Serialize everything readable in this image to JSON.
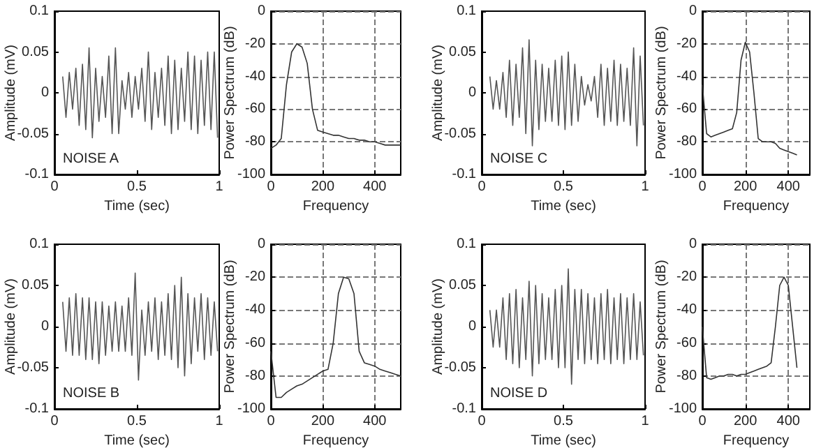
{
  "chart_data": [
    {
      "type": "line",
      "xlabel": "Time (sec)",
      "ylabel": "Amplitude (mV)",
      "annotations": [
        "NOISE A"
      ],
      "xlim": [
        0,
        1
      ],
      "xticks": [
        0,
        0.5,
        1
      ],
      "ylim": [
        -0.1,
        0.1
      ],
      "yticks": [
        -0.1,
        -0.05,
        0,
        0.05,
        0.1
      ],
      "grid": false,
      "marker": "none",
      "x": [
        0.05,
        0.07,
        0.09,
        0.11,
        0.13,
        0.15,
        0.17,
        0.19,
        0.21,
        0.23,
        0.25,
        0.27,
        0.29,
        0.31,
        0.33,
        0.35,
        0.37,
        0.39,
        0.41,
        0.43,
        0.45,
        0.47,
        0.49,
        0.51,
        0.53,
        0.55,
        0.57,
        0.59,
        0.61,
        0.63,
        0.65,
        0.67,
        0.69,
        0.71,
        0.73,
        0.75,
        0.77,
        0.79,
        0.81,
        0.83,
        0.85,
        0.87,
        0.89,
        0.91,
        0.93,
        0.95,
        0.97,
        0.99
      ],
      "series": [
        {
          "color": "#555555",
          "values": [
            0.02,
            -0.03,
            0.025,
            -0.02,
            0.03,
            -0.04,
            0.035,
            -0.045,
            0.055,
            -0.055,
            0.03,
            -0.035,
            0.02,
            -0.03,
            0.045,
            -0.05,
            0.055,
            -0.05,
            0.015,
            -0.02,
            0.025,
            -0.03,
            0.02,
            -0.02,
            0.03,
            -0.035,
            0.05,
            -0.045,
            0.025,
            -0.03,
            0.03,
            -0.04,
            0.045,
            -0.05,
            0.04,
            -0.045,
            0.03,
            -0.035,
            0.05,
            -0.045,
            0.045,
            -0.05,
            0.04,
            -0.04,
            0.05,
            -0.045,
            0.05,
            -0.055
          ]
        }
      ]
    },
    {
      "type": "line",
      "xlabel": "Frequency",
      "ylabel": "Power Spectrum (dB)",
      "xlim": [
        0,
        500
      ],
      "xticks": [
        0,
        200,
        400
      ],
      "ylim": [
        -100,
        0
      ],
      "yticks": [
        -100,
        -80,
        -60,
        -40,
        -20,
        0
      ],
      "grid": true,
      "marker": "none",
      "x": [
        0,
        20,
        40,
        60,
        80,
        100,
        120,
        140,
        160,
        180,
        200,
        220,
        240,
        260,
        280,
        300,
        320,
        340,
        360,
        380,
        400,
        420,
        440,
        460,
        480,
        500
      ],
      "series": [
        {
          "color": "#333333",
          "values": [
            -84,
            -82,
            -78,
            -45,
            -25,
            -20,
            -22,
            -32,
            -60,
            -73,
            -74,
            -75,
            -76,
            -76,
            -77,
            -78,
            -78,
            -79,
            -79,
            -80,
            -80,
            -81,
            -82,
            -82,
            -82,
            -82
          ]
        }
      ]
    },
    {
      "type": "line",
      "xlabel": "Time (sec)",
      "ylabel": "Amplitude (mV)",
      "annotations": [
        "NOISE C"
      ],
      "xlim": [
        0,
        1
      ],
      "xticks": [
        0,
        0.5,
        1
      ],
      "ylim": [
        -0.1,
        0.1
      ],
      "yticks": [
        -0.1,
        -0.05,
        0,
        0.05,
        0.1
      ],
      "grid": false,
      "marker": "none",
      "x": [
        0.05,
        0.07,
        0.09,
        0.11,
        0.13,
        0.15,
        0.17,
        0.19,
        0.21,
        0.23,
        0.25,
        0.27,
        0.29,
        0.31,
        0.33,
        0.35,
        0.37,
        0.39,
        0.41,
        0.43,
        0.45,
        0.47,
        0.49,
        0.51,
        0.53,
        0.55,
        0.57,
        0.59,
        0.61,
        0.63,
        0.65,
        0.67,
        0.69,
        0.71,
        0.73,
        0.75,
        0.77,
        0.79,
        0.81,
        0.83,
        0.85,
        0.87,
        0.89,
        0.91,
        0.93,
        0.95,
        0.97,
        0.99
      ],
      "series": [
        {
          "color": "#555555",
          "values": [
            0.02,
            -0.02,
            0.015,
            -0.02,
            0.025,
            -0.03,
            0.04,
            -0.04,
            0.035,
            -0.03,
            0.055,
            -0.05,
            0.065,
            -0.065,
            0.04,
            -0.045,
            0.035,
            -0.035,
            0.03,
            -0.035,
            0.04,
            -0.04,
            0.045,
            -0.045,
            0.05,
            -0.04,
            0.035,
            -0.035,
            0.02,
            -0.015,
            0.01,
            -0.01,
            0.02,
            -0.03,
            0.035,
            -0.04,
            0.03,
            -0.035,
            0.04,
            -0.04,
            0.035,
            -0.035,
            0.03,
            -0.04,
            0.055,
            -0.065,
            0.045,
            -0.04
          ]
        }
      ]
    },
    {
      "type": "line",
      "xlabel": "Frequency",
      "ylabel": "Power Spectrum (dB)",
      "xlim": [
        0,
        500
      ],
      "xticks": [
        0,
        200,
        400
      ],
      "ylim": [
        -100,
        0
      ],
      "yticks": [
        -100,
        -80,
        -60,
        -40,
        -20,
        0
      ],
      "grid": true,
      "marker": "none",
      "x": [
        0,
        20,
        40,
        60,
        80,
        100,
        120,
        140,
        160,
        180,
        200,
        220,
        240,
        260,
        280,
        300,
        320,
        340,
        360,
        380,
        400,
        420,
        440
      ],
      "series": [
        {
          "color": "#333333",
          "values": [
            -45,
            -75,
            -77,
            -76,
            -75,
            -74,
            -73,
            -72,
            -62,
            -30,
            -19,
            -25,
            -50,
            -78,
            -80,
            -80,
            -80,
            -81,
            -84,
            -85,
            -86,
            -87,
            -88
          ]
        }
      ]
    },
    {
      "type": "line",
      "xlabel": "Time (sec)",
      "ylabel": "Amplitude (mV)",
      "annotations": [
        "NOISE B"
      ],
      "xlim": [
        0,
        1
      ],
      "xticks": [
        0,
        0.5,
        1
      ],
      "ylim": [
        -0.1,
        0.1
      ],
      "yticks": [
        -0.1,
        -0.05,
        0,
        0.05,
        0.1
      ],
      "grid": false,
      "marker": "none",
      "x": [
        0.05,
        0.07,
        0.09,
        0.11,
        0.13,
        0.15,
        0.17,
        0.19,
        0.21,
        0.23,
        0.25,
        0.27,
        0.29,
        0.31,
        0.33,
        0.35,
        0.37,
        0.39,
        0.41,
        0.43,
        0.45,
        0.47,
        0.49,
        0.51,
        0.53,
        0.55,
        0.57,
        0.59,
        0.61,
        0.63,
        0.65,
        0.67,
        0.69,
        0.71,
        0.73,
        0.75,
        0.77,
        0.79,
        0.81,
        0.83,
        0.85,
        0.87,
        0.89,
        0.91,
        0.93,
        0.95,
        0.97,
        0.99
      ],
      "series": [
        {
          "color": "#555555",
          "values": [
            0.03,
            -0.03,
            0.035,
            -0.035,
            0.04,
            -0.035,
            0.035,
            -0.04,
            0.035,
            -0.04,
            0.03,
            -0.045,
            0.03,
            -0.035,
            0.025,
            -0.03,
            0.03,
            -0.03,
            0.025,
            -0.03,
            0.035,
            -0.035,
            0.065,
            -0.065,
            0.02,
            -0.035,
            0.03,
            -0.03,
            0.035,
            -0.04,
            0.03,
            -0.035,
            0.04,
            -0.04,
            0.05,
            -0.05,
            0.06,
            -0.06,
            0.04,
            -0.045,
            0.035,
            -0.03,
            0.04,
            -0.04,
            0.035,
            -0.035,
            0.03,
            -0.03
          ]
        }
      ]
    },
    {
      "type": "line",
      "xlabel": "Frequency",
      "ylabel": "Power Spectrum (dB)",
      "xlim": [
        0,
        500
      ],
      "xticks": [
        0,
        200,
        400
      ],
      "ylim": [
        -100,
        0
      ],
      "yticks": [
        -100,
        -80,
        -60,
        -40,
        -20,
        0
      ],
      "grid": true,
      "marker": "none",
      "x": [
        0,
        20,
        40,
        60,
        80,
        100,
        120,
        140,
        160,
        180,
        200,
        220,
        240,
        260,
        280,
        300,
        320,
        340,
        360,
        380,
        400,
        420,
        440,
        460,
        480,
        500
      ],
      "series": [
        {
          "color": "#333333",
          "values": [
            -65,
            -93,
            -93,
            -90,
            -88,
            -86,
            -85,
            -83,
            -81,
            -79,
            -77,
            -76,
            -60,
            -30,
            -20,
            -21,
            -30,
            -65,
            -72,
            -73,
            -74,
            -76,
            -77,
            -78,
            -79,
            -80
          ]
        }
      ]
    },
    {
      "type": "line",
      "xlabel": "Time (sec)",
      "ylabel": "Amplitude (mV)",
      "annotations": [
        "NOISE D"
      ],
      "xlim": [
        0,
        1
      ],
      "xticks": [
        0,
        0.5,
        1
      ],
      "ylim": [
        -0.1,
        0.1
      ],
      "yticks": [
        -0.1,
        -0.05,
        0,
        0.05,
        0.1
      ],
      "grid": false,
      "marker": "none",
      "x": [
        0.05,
        0.07,
        0.09,
        0.11,
        0.13,
        0.15,
        0.17,
        0.19,
        0.21,
        0.23,
        0.25,
        0.27,
        0.29,
        0.31,
        0.33,
        0.35,
        0.37,
        0.39,
        0.41,
        0.43,
        0.45,
        0.47,
        0.49,
        0.51,
        0.53,
        0.55,
        0.57,
        0.59,
        0.61,
        0.63,
        0.65,
        0.67,
        0.69,
        0.71,
        0.73,
        0.75,
        0.77,
        0.79,
        0.81,
        0.83,
        0.85,
        0.87,
        0.89,
        0.91,
        0.93,
        0.95,
        0.97,
        0.99
      ],
      "series": [
        {
          "color": "#555555",
          "values": [
            0.02,
            -0.025,
            0.02,
            -0.025,
            0.035,
            -0.04,
            0.04,
            -0.045,
            0.045,
            -0.05,
            0.035,
            -0.04,
            0.055,
            -0.06,
            0.05,
            -0.045,
            0.04,
            -0.04,
            0.035,
            -0.04,
            0.045,
            -0.05,
            0.05,
            -0.05,
            0.07,
            -0.07,
            0.045,
            -0.04,
            0.045,
            -0.045,
            0.04,
            -0.04,
            0.035,
            -0.045,
            0.04,
            -0.04,
            0.045,
            -0.045,
            0.035,
            -0.04,
            0.04,
            -0.045,
            0.035,
            -0.04,
            0.04,
            -0.04,
            0.03,
            -0.035
          ]
        }
      ]
    },
    {
      "type": "line",
      "xlabel": "Frequency",
      "ylabel": "Power Spectrum (dB)",
      "xlim": [
        0,
        500
      ],
      "xticks": [
        0,
        200,
        400
      ],
      "ylim": [
        -100,
        0
      ],
      "yticks": [
        -100,
        -80,
        -60,
        -40,
        -20,
        0
      ],
      "grid": true,
      "marker": "none",
      "x": [
        0,
        20,
        40,
        60,
        80,
        100,
        120,
        140,
        160,
        180,
        200,
        220,
        240,
        260,
        280,
        300,
        320,
        340,
        360,
        380,
        400,
        420,
        440
      ],
      "series": [
        {
          "color": "#333333",
          "values": [
            -50,
            -81,
            -82,
            -81,
            -80,
            -80,
            -79,
            -79,
            -80,
            -79,
            -79,
            -78,
            -77,
            -76,
            -75,
            -74,
            -72,
            -50,
            -25,
            -20,
            -25,
            -50,
            -75
          ]
        }
      ]
    }
  ]
}
